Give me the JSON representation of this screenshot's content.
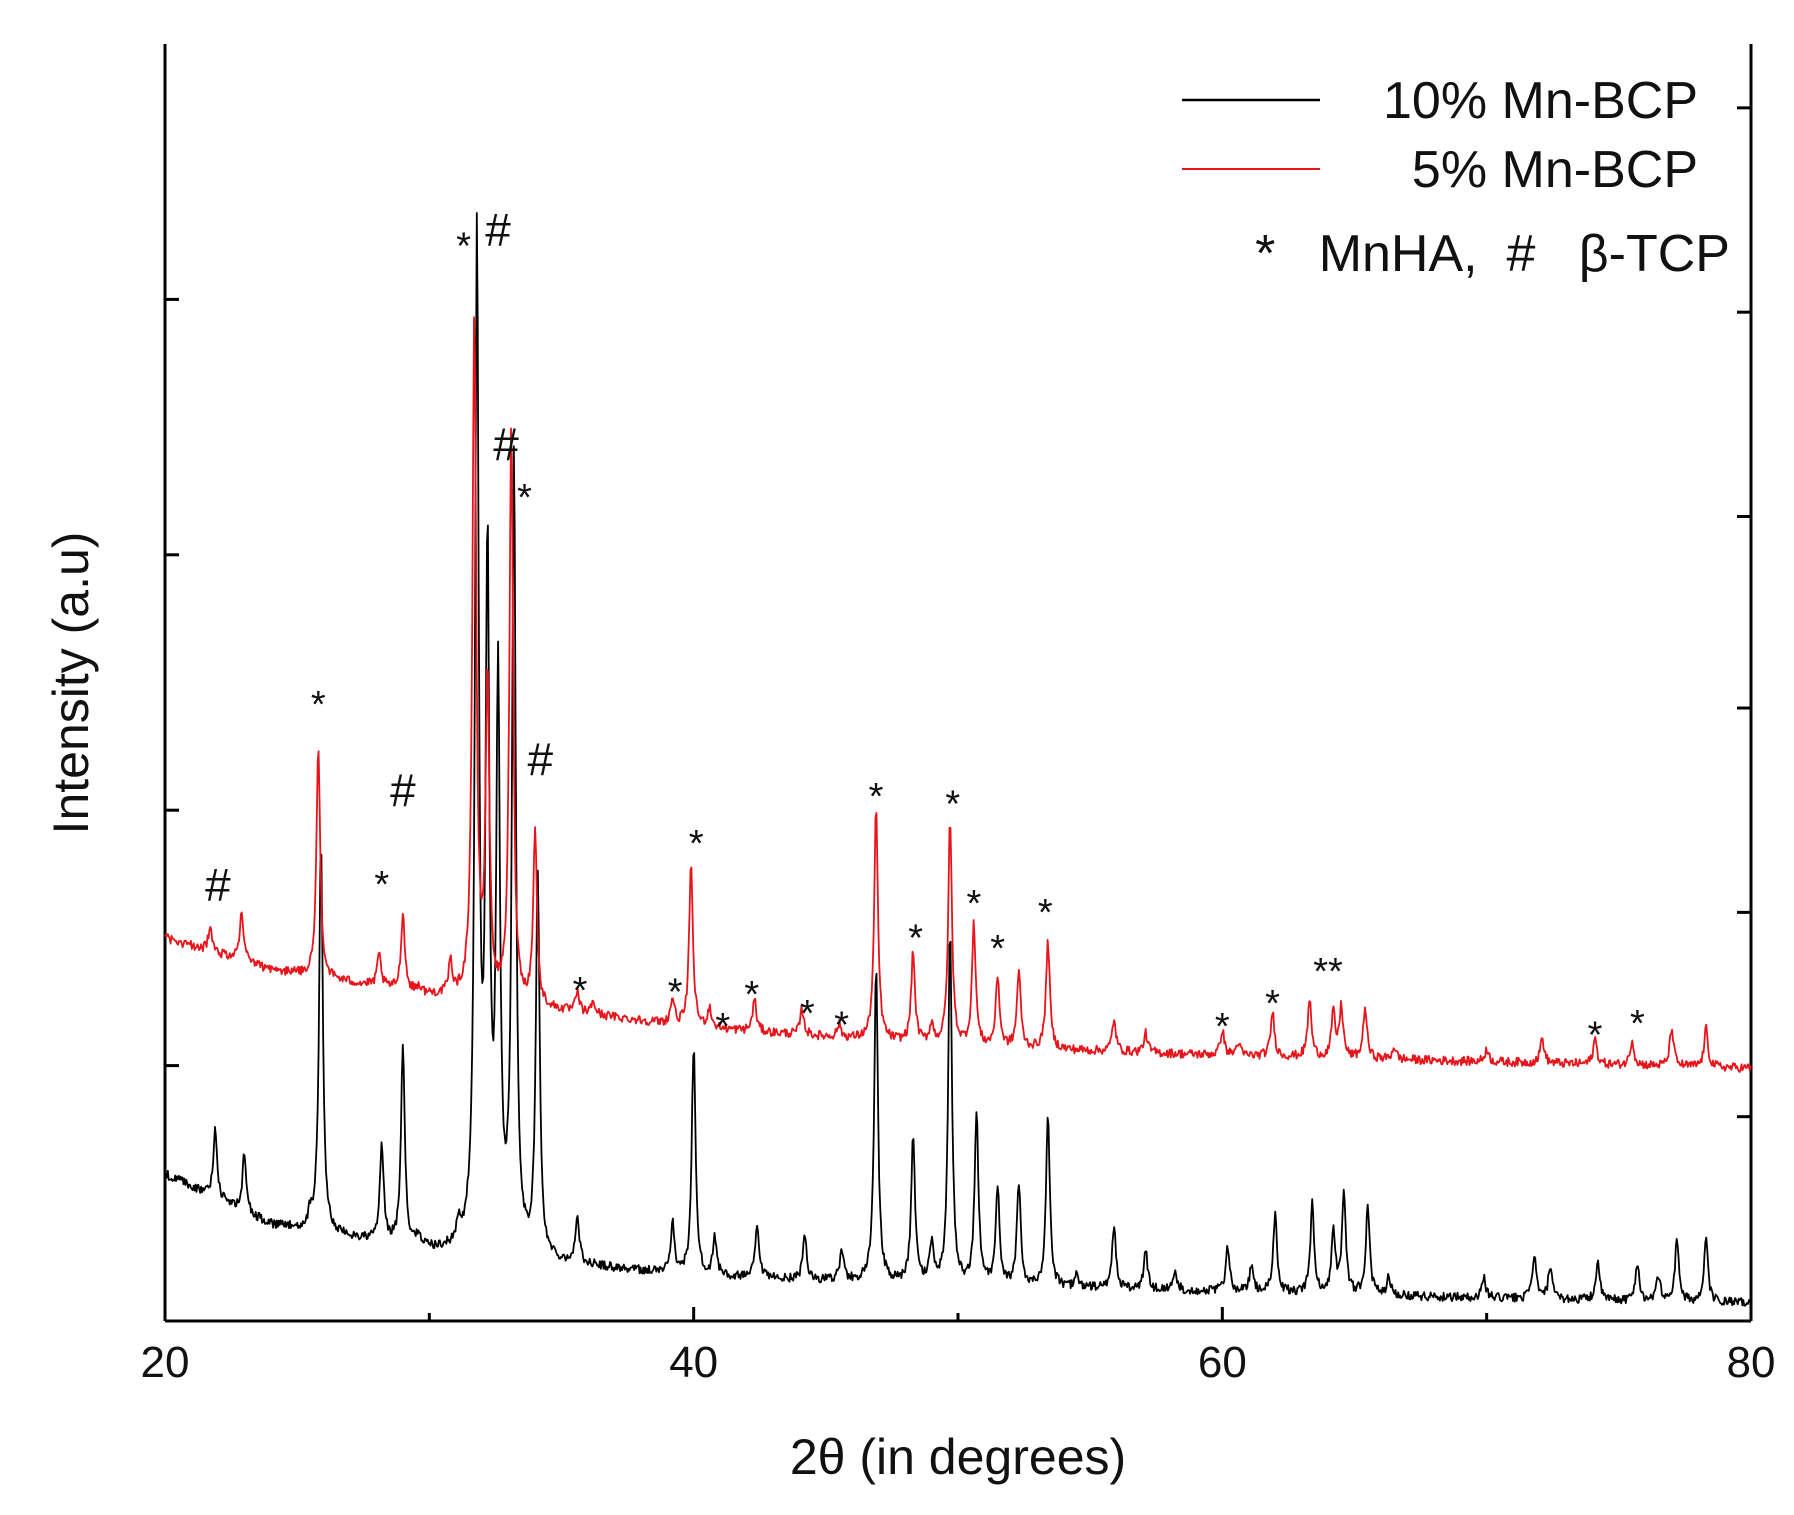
{
  "chart_data": {
    "type": "line",
    "title": "",
    "xlabel": "2θ (in degrees)",
    "ylabel": "Intensity (a.u)",
    "xlim": [
      20,
      80
    ],
    "ylim": [
      0,
      100
    ],
    "x_ticks": [
      20,
      40,
      60,
      80
    ],
    "x_tick_labels": [
      "20",
      "40",
      "60",
      "80"
    ],
    "x_minor_ticks": [
      30,
      50,
      70
    ],
    "left_ticks": [
      20,
      40,
      60,
      80
    ],
    "right_ticks": [
      16,
      32,
      48,
      63,
      79,
      95
    ],
    "legend_position": "top-right",
    "legend": [
      {
        "label": "10% Mn-BCP",
        "color": "#000000"
      },
      {
        "label": "5% Mn-BCP",
        "color": "#e8141b"
      },
      {
        "label": "*   MnHA,  #   β-TCP",
        "color": "#000000"
      }
    ],
    "series": [
      {
        "name": "10% Mn-BCP",
        "color": "#000000",
        "baseline": [
          [
            20,
            11.5
          ],
          [
            24,
            7.5
          ],
          [
            30,
            5.5
          ],
          [
            40,
            3.5
          ],
          [
            50,
            2.8
          ],
          [
            60,
            2.3
          ],
          [
            70,
            1.8
          ],
          [
            80,
            1.4
          ]
        ],
        "peaks": [
          [
            21.9,
            5.5
          ],
          [
            23.0,
            4.5
          ],
          [
            25.5,
            1.2
          ],
          [
            25.9,
            30.5
          ],
          [
            28.2,
            7.5
          ],
          [
            29.0,
            15.7
          ],
          [
            29.6,
            1.0
          ],
          [
            31.1,
            1.5
          ],
          [
            31.8,
            78.6
          ],
          [
            32.2,
            53.0
          ],
          [
            32.6,
            43.5
          ],
          [
            33.2,
            62.0
          ],
          [
            34.1,
            30.0
          ],
          [
            35.6,
            3.5
          ],
          [
            39.2,
            4.0
          ],
          [
            40.0,
            18.0
          ],
          [
            40.8,
            3.0
          ],
          [
            42.4,
            4.0
          ],
          [
            44.2,
            3.5
          ],
          [
            45.6,
            2.5
          ],
          [
            46.9,
            24.5
          ],
          [
            48.3,
            11.5
          ],
          [
            49.0,
            3.0
          ],
          [
            49.7,
            27.5
          ],
          [
            50.7,
            13.5
          ],
          [
            51.5,
            7.5
          ],
          [
            52.3,
            8.0
          ],
          [
            53.4,
            13.5
          ],
          [
            54.5,
            1.0
          ],
          [
            55.9,
            5.0
          ],
          [
            57.1,
            3.0
          ],
          [
            58.2,
            1.5
          ],
          [
            60.2,
            3.5
          ],
          [
            61.1,
            2.0
          ],
          [
            62.0,
            6.0
          ],
          [
            63.4,
            7.0
          ],
          [
            64.2,
            5.0
          ],
          [
            64.6,
            8.0
          ],
          [
            65.5,
            7.0
          ],
          [
            66.3,
            1.5
          ],
          [
            69.9,
            1.5
          ],
          [
            71.8,
            3.5
          ],
          [
            72.4,
            2.5
          ],
          [
            74.2,
            3.0
          ],
          [
            75.7,
            3.0
          ],
          [
            76.5,
            2.0
          ],
          [
            77.2,
            5.0
          ],
          [
            78.3,
            5.0
          ]
        ]
      },
      {
        "name": "5% Mn-BCP",
        "color": "#e8141b",
        "baseline": [
          [
            20,
            30.0
          ],
          [
            24,
            27.5
          ],
          [
            30,
            25.5
          ],
          [
            40,
            23.0
          ],
          [
            50,
            21.5
          ],
          [
            60,
            20.8
          ],
          [
            70,
            20.3
          ],
          [
            80,
            19.8
          ]
        ],
        "peaks": [
          [
            21.7,
            1.8
          ],
          [
            22.9,
            3.8
          ],
          [
            25.8,
            18.0
          ],
          [
            28.1,
            2.5
          ],
          [
            29.0,
            6.0
          ],
          [
            29.6,
            0.5
          ],
          [
            30.8,
            2.5
          ],
          [
            31.7,
            53.5
          ],
          [
            32.2,
            25.0
          ],
          [
            33.1,
            45.0
          ],
          [
            34.0,
            13.5
          ],
          [
            35.6,
            1.5
          ],
          [
            36.2,
            1.0
          ],
          [
            39.2,
            2.0
          ],
          [
            39.9,
            12.5
          ],
          [
            40.6,
            1.5
          ],
          [
            42.3,
            2.5
          ],
          [
            44.1,
            2.0
          ],
          [
            45.5,
            1.0
          ],
          [
            46.9,
            18.0
          ],
          [
            48.3,
            7.0
          ],
          [
            49.0,
            1.5
          ],
          [
            49.7,
            17.5
          ],
          [
            50.6,
            9.5
          ],
          [
            51.5,
            5.5
          ],
          [
            52.3,
            6.0
          ],
          [
            53.4,
            8.5
          ],
          [
            55.9,
            2.5
          ],
          [
            57.1,
            1.5
          ],
          [
            60.0,
            2.0
          ],
          [
            60.6,
            1.0
          ],
          [
            61.9,
            3.5
          ],
          [
            63.3,
            4.5
          ],
          [
            64.2,
            3.5
          ],
          [
            64.5,
            4.0
          ],
          [
            65.4,
            4.0
          ],
          [
            66.5,
            1.0
          ],
          [
            70.0,
            1.0
          ],
          [
            72.1,
            2.0
          ],
          [
            74.1,
            2.0
          ],
          [
            75.5,
            2.0
          ],
          [
            77.0,
            3.0
          ],
          [
            78.3,
            3.0
          ]
        ]
      }
    ],
    "annotations": [
      {
        "text": "#",
        "x": 22.0,
        "y": 32.9,
        "size": "large"
      },
      {
        "text": "*",
        "x": 25.8,
        "y": 47.3,
        "size": "normal"
      },
      {
        "text": "#",
        "x": 29.0,
        "y": 40.3,
        "size": "large"
      },
      {
        "text": "*",
        "x": 28.2,
        "y": 33.2,
        "size": "normal"
      },
      {
        "text": "*",
        "x": 31.3,
        "y": 83.2,
        "size": "normal"
      },
      {
        "text": "#",
        "x": 32.6,
        "y": 84.2,
        "size": "large"
      },
      {
        "text": "#",
        "x": 32.9,
        "y": 67.4,
        "size": "large"
      },
      {
        "text": "*",
        "x": 33.6,
        "y": 63.5,
        "size": "normal"
      },
      {
        "text": "#",
        "x": 34.2,
        "y": 42.7,
        "size": "large"
      },
      {
        "text": "*",
        "x": 35.7,
        "y": 24.9,
        "size": "normal"
      },
      {
        "text": "*",
        "x": 40.1,
        "y": 36.4,
        "size": "normal"
      },
      {
        "text": "*",
        "x": 39.3,
        "y": 24.8,
        "size": "normal"
      },
      {
        "text": "*",
        "x": 41.1,
        "y": 22.1,
        "size": "normal"
      },
      {
        "text": "*",
        "x": 42.2,
        "y": 24.6,
        "size": "normal"
      },
      {
        "text": "*",
        "x": 44.3,
        "y": 23.1,
        "size": "normal"
      },
      {
        "text": "*",
        "x": 45.6,
        "y": 22.2,
        "size": "normal"
      },
      {
        "text": "*",
        "x": 46.9,
        "y": 40.1,
        "size": "normal"
      },
      {
        "text": "*",
        "x": 49.8,
        "y": 39.5,
        "size": "normal"
      },
      {
        "text": "*",
        "x": 48.4,
        "y": 29.0,
        "size": "normal"
      },
      {
        "text": "*",
        "x": 50.6,
        "y": 31.7,
        "size": "normal"
      },
      {
        "text": "*",
        "x": 51.5,
        "y": 28.2,
        "size": "normal"
      },
      {
        "text": "*",
        "x": 53.3,
        "y": 31.0,
        "size": "normal"
      },
      {
        "text": "*",
        "x": 60.0,
        "y": 22.1,
        "size": "normal"
      },
      {
        "text": "*",
        "x": 61.9,
        "y": 23.9,
        "size": "normal"
      },
      {
        "text": "**",
        "x": 64.0,
        "y": 26.4,
        "size": "normal"
      },
      {
        "text": "*",
        "x": 74.1,
        "y": 21.4,
        "size": "normal"
      },
      {
        "text": "*",
        "x": 75.7,
        "y": 22.3,
        "size": "normal"
      }
    ]
  }
}
